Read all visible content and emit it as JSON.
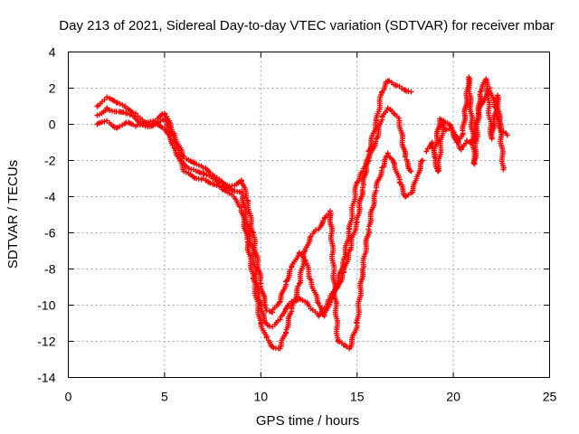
{
  "chart_data": {
    "type": "scatter",
    "title": "Day 213 of 2021, Sidereal Day-to-day VTEC variation (SDTVAR) for receiver mbar",
    "xlabel": "GPS time / hours",
    "ylabel": "SDTVAR / TECUs",
    "xlim": [
      0,
      25
    ],
    "ylim": [
      -14,
      4
    ],
    "xticks": [
      0,
      5,
      10,
      15,
      20,
      25
    ],
    "yticks": [
      -14,
      -12,
      -10,
      -8,
      -6,
      -4,
      -2,
      0,
      2,
      4
    ],
    "grid": true,
    "legend": "none",
    "marker": "+",
    "color": "#ff0000",
    "series": [
      {
        "x": [
          1.5,
          2.0,
          2.5,
          3.0,
          3.5,
          4.0,
          4.5,
          5.0,
          5.5,
          6.0,
          6.5,
          7.0,
          7.5,
          8.0,
          8.5,
          9.0,
          9.3,
          9.6,
          10.0,
          10.3,
          10.6,
          11.0,
          11.3,
          11.6,
          12.0,
          12.3,
          12.6,
          13.0,
          13.3,
          13.6,
          14.0,
          14.3,
          14.6,
          15.0,
          15.3,
          15.6,
          16.0,
          16.3,
          16.6,
          16.9,
          17.2,
          17.5,
          17.8
        ],
        "y": [
          1.0,
          1.5,
          1.2,
          0.9,
          0.6,
          0.1,
          0.2,
          0.6,
          -0.5,
          -1.8,
          -2.1,
          -2.4,
          -2.8,
          -3.2,
          -3.4,
          -3.1,
          -4.2,
          -6.0,
          -8.8,
          -10.3,
          -10.4,
          -9.8,
          -8.7,
          -7.9,
          -7.1,
          -7.5,
          -8.6,
          -9.9,
          -10.6,
          -9.8,
          -9.0,
          -8.2,
          -7.0,
          -5.4,
          -3.5,
          -1.5,
          0.2,
          1.8,
          2.4,
          2.2,
          2.1,
          1.9,
          1.8
        ]
      },
      {
        "x": [
          1.5,
          2.0,
          2.5,
          3.0,
          3.5,
          4.0,
          4.5,
          5.0,
          5.5,
          6.0,
          6.5,
          7.0,
          7.5,
          8.0,
          8.5,
          9.0,
          9.3,
          9.6,
          10.0,
          10.3,
          10.6,
          11.0,
          11.3,
          11.6,
          12.0,
          12.3,
          12.6,
          13.0,
          13.3,
          13.6,
          14.0,
          14.3,
          14.6,
          15.0,
          15.3,
          15.6,
          16.0,
          16.3,
          16.6,
          16.9,
          17.2,
          17.5,
          17.8
        ],
        "y": [
          0.5,
          0.9,
          0.7,
          0.6,
          0.3,
          -0.1,
          0.0,
          0.3,
          -0.9,
          -2.2,
          -2.5,
          -2.7,
          -3.0,
          -3.4,
          -3.6,
          -3.7,
          -5.5,
          -7.2,
          -10.2,
          -11.0,
          -11.2,
          -10.8,
          -10.2,
          -9.8,
          -9.6,
          -9.8,
          -10.2,
          -10.6,
          -10.2,
          -9.6,
          -8.8,
          -7.5,
          -5.8,
          -3.2,
          -2.6,
          -2.0,
          -0.8,
          0.4,
          0.9,
          0.6,
          0.2,
          -1.8,
          -2.6
        ]
      },
      {
        "x": [
          1.5,
          2.0,
          2.5,
          3.0,
          3.5,
          4.0,
          4.5,
          5.0,
          5.5,
          6.0,
          6.5,
          7.0,
          7.5,
          8.0,
          8.5,
          9.0,
          9.3,
          9.6,
          10.0,
          10.3,
          10.6,
          11.0,
          11.3,
          11.6,
          12.0,
          12.3,
          12.6,
          13.0,
          13.3,
          13.6,
          14.0,
          14.3,
          14.6,
          15.0,
          15.3,
          15.6,
          16.0,
          16.3,
          16.6,
          16.9,
          17.2,
          17.5,
          17.8,
          18.1,
          18.4
        ],
        "y": [
          0.0,
          0.2,
          -0.2,
          0.1,
          -0.1,
          0.0,
          0.1,
          -0.2,
          -1.3,
          -2.6,
          -2.9,
          -3.0,
          -3.3,
          -3.6,
          -3.9,
          -4.6,
          -6.5,
          -8.5,
          -11.0,
          -11.8,
          -12.3,
          -12.4,
          -11.5,
          -10.2,
          -8.8,
          -7.0,
          -6.2,
          -5.8,
          -5.2,
          -4.8,
          -12.0,
          -12.2,
          -12.4,
          -11.0,
          -8.0,
          -5.8,
          -3.5,
          -2.4,
          -1.6,
          -2.1,
          -3.2,
          -4.0,
          -3.8,
          -3.0,
          -2.0
        ]
      },
      {
        "x": [
          18.6,
          18.9,
          19.2,
          19.5,
          19.8,
          20.1,
          20.4,
          20.7,
          21.0,
          21.3,
          21.6,
          21.9,
          22.2,
          22.5,
          22.8
        ],
        "y": [
          -1.5,
          -1.0,
          -2.6,
          0.2,
          0.0,
          -0.6,
          -1.4,
          -0.9,
          -1.0,
          0.6,
          1.4,
          2.0,
          0.9,
          -0.4,
          -0.6
        ]
      },
      {
        "x": [
          19.0,
          19.3,
          19.6,
          19.9,
          20.2,
          20.5,
          20.8,
          21.1,
          21.4,
          21.7,
          22.0,
          22.3,
          22.6
        ],
        "y": [
          -1.8,
          0.3,
          -0.3,
          -0.2,
          -1.0,
          -0.5,
          2.6,
          -2.2,
          1.8,
          2.5,
          -0.8,
          1.6,
          -2.5
        ]
      }
    ]
  }
}
